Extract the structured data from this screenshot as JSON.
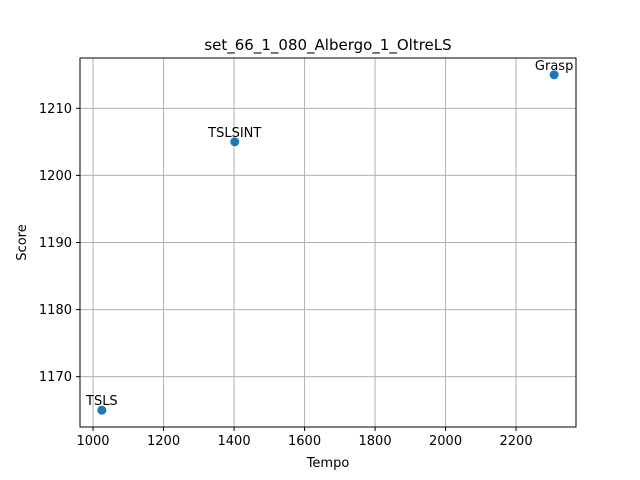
{
  "chart_data": {
    "type": "scatter",
    "title": "set_66_1_080_Albergo_1_OltreLS",
    "xlabel": "Tempo",
    "ylabel": "Score",
    "xlim": [
      963,
      2370
    ],
    "ylim": [
      1162.5,
      1217.5
    ],
    "xticks": [
      1000,
      1200,
      1400,
      1600,
      1800,
      2000,
      2200
    ],
    "yticks": [
      1170,
      1180,
      1190,
      1200,
      1210
    ],
    "grid": true,
    "color": "#1f77b4",
    "points": [
      {
        "label": "TSLS",
        "x": 1025,
        "y": 1165
      },
      {
        "label": "TSLSINT",
        "x": 1402,
        "y": 1205
      },
      {
        "label": "Grasp",
        "x": 2308,
        "y": 1215
      }
    ]
  }
}
